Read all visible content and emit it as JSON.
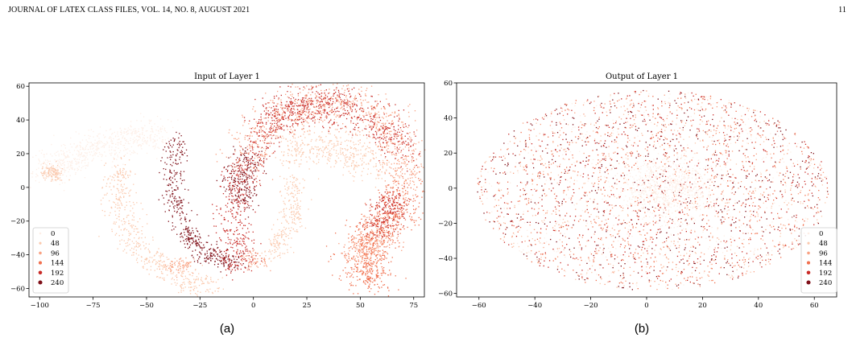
{
  "header": {
    "journal": "JOURNAL OF LATEX CLASS FILES, VOL. 14, NO. 8, AUGUST 2021",
    "page_number": "11"
  },
  "colors": {
    "palette": [
      "#fdeee6",
      "#fbc9ad",
      "#f9a283",
      "#f1704f",
      "#c92b27",
      "#7f0f18"
    ]
  },
  "chart_data": [
    {
      "type": "scatter",
      "title": "Input of Layer 1",
      "caption": "(a)",
      "xlim": [
        -105,
        80
      ],
      "ylim": [
        -65,
        62
      ],
      "xticks": [
        -100,
        -75,
        -50,
        -25,
        0,
        25,
        50,
        75
      ],
      "yticks": [
        -60,
        -40,
        -20,
        0,
        20,
        40,
        60
      ],
      "legend": {
        "placement": "lower-left",
        "entries": [
          "0",
          "48",
          "96",
          "144",
          "192",
          "240"
        ]
      },
      "series": [
        {
          "label": "0",
          "approx_region": "left arm, x -100..-40, y -10..35"
        },
        {
          "label": "48",
          "approx_region": "lower-left curve, x -70..-20, y -60..0"
        },
        {
          "label": "96",
          "approx_region": "upper arc and right lobe, x 0..75, y -55..55"
        },
        {
          "label": "144",
          "approx_region": "right lobe, x 40..75, y -55..30"
        },
        {
          "label": "192",
          "approx_region": "central S band, x -10..30, y -50..55"
        },
        {
          "label": "240",
          "approx_region": "inner dark band, x -40..-10, y -45..30"
        }
      ]
    },
    {
      "type": "scatter",
      "title": "Output of Layer 1",
      "caption": "(b)",
      "xlim": [
        -68,
        68
      ],
      "ylim": [
        -62,
        60
      ],
      "xticks": [
        -60,
        -40,
        -20,
        0,
        20,
        40,
        60
      ],
      "yticks": [
        -60,
        -40,
        -20,
        0,
        20,
        40,
        60
      ],
      "legend": {
        "placement": "lower-right",
        "entries": [
          "0",
          "48",
          "96",
          "144",
          "192",
          "240"
        ]
      },
      "series": [
        {
          "label": "0",
          "approx_region": "dense center, x -15..25, y -20..20"
        },
        {
          "label": "48",
          "approx_region": "ellipse, x -65..65, y -60..58"
        },
        {
          "label": "96",
          "approx_region": "ellipse, x -65..65, y -60..58"
        },
        {
          "label": "144",
          "approx_region": "ellipse, x -65..65, y -60..58"
        },
        {
          "label": "192",
          "approx_region": "ellipse, x -65..65, y -60..58"
        },
        {
          "label": "240",
          "approx_region": "ellipse, x -65..65, y -60..58"
        }
      ]
    }
  ]
}
